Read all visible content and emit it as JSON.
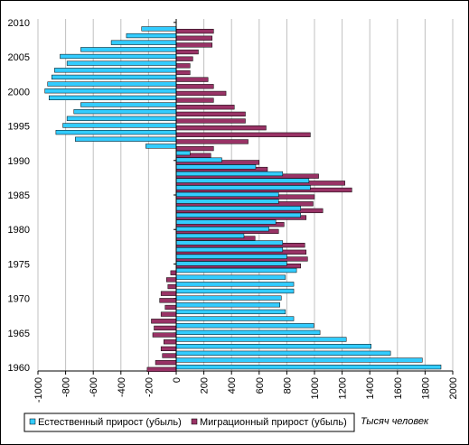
{
  "chart_data": {
    "type": "bar",
    "orientation": "horizontal",
    "categories": [
      1960,
      1961,
      1962,
      1963,
      1964,
      1965,
      1966,
      1967,
      1968,
      1969,
      1970,
      1971,
      1972,
      1973,
      1974,
      1975,
      1976,
      1977,
      1978,
      1979,
      1980,
      1981,
      1982,
      1983,
      1984,
      1985,
      1986,
      1987,
      1988,
      1989,
      1990,
      1991,
      1992,
      1993,
      1994,
      1995,
      1996,
      1997,
      1998,
      1999,
      2000,
      2001,
      2002,
      2003,
      2004,
      2005,
      2006,
      2007,
      2008,
      2009
    ],
    "series": [
      {
        "name": "Естественный прирост (убыль)",
        "color": "#33ccff",
        "values": [
          1915,
          1780,
          1550,
          1410,
          1230,
          1040,
          995,
          850,
          790,
          750,
          760,
          850,
          850,
          790,
          870,
          800,
          800,
          770,
          770,
          490,
          670,
          720,
          900,
          900,
          740,
          740,
          970,
          960,
          770,
          575,
          330,
          100,
          -220,
          -730,
          -870,
          -820,
          -790,
          -740,
          -690,
          -920,
          -950,
          -930,
          -900,
          -880,
          -790,
          -840,
          -690,
          -470,
          -360,
          -250
        ]
      },
      {
        "name": "Миграционный прирост (убыль)",
        "color": "#993366",
        "values": [
          -210,
          -150,
          -100,
          -110,
          -90,
          -170,
          -160,
          -180,
          -110,
          -80,
          -120,
          -110,
          -60,
          -70,
          -40,
          900,
          950,
          940,
          930,
          570,
          740,
          780,
          940,
          1060,
          990,
          1000,
          1270,
          1220,
          1030,
          660,
          600,
          250,
          270,
          520,
          970,
          650,
          500,
          500,
          420,
          270,
          360,
          270,
          230,
          100,
          100,
          120,
          160,
          260,
          260,
          270
        ]
      }
    ],
    "xlim": [
      -1000,
      2000
    ],
    "xticks": [
      -1000,
      -800,
      -600,
      -400,
      -200,
      0,
      200,
      400,
      600,
      800,
      1000,
      1200,
      1400,
      1600,
      1800,
      2000
    ],
    "ylim": [
      1959.5,
      2010.5
    ],
    "yticks": [
      1960,
      1965,
      1970,
      1975,
      1980,
      1985,
      1990,
      1995,
      2000,
      2005,
      2010
    ],
    "grid": true,
    "legend": "bottom",
    "unit_label": "Тысяч человек"
  }
}
